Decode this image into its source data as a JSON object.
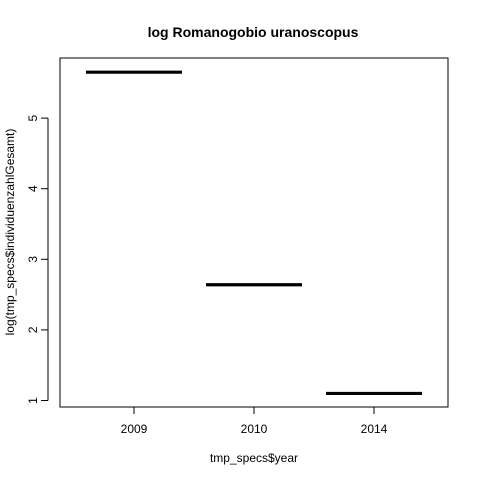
{
  "chart_data": {
    "type": "bar",
    "title": "log Romanogobio uranoscopus",
    "xlabel": "tmp_specs$year",
    "ylabel": "log(tmp_specs$individuenzahlGesamt)",
    "categories": [
      "2009",
      "2010",
      "2014"
    ],
    "values": [
      5.65,
      2.64,
      1.1
    ],
    "yticks": [
      1,
      2,
      3,
      4,
      5
    ],
    "ylim": [
      0.85,
      5.85
    ],
    "grid": false,
    "legend": "none",
    "color": "#000000"
  }
}
